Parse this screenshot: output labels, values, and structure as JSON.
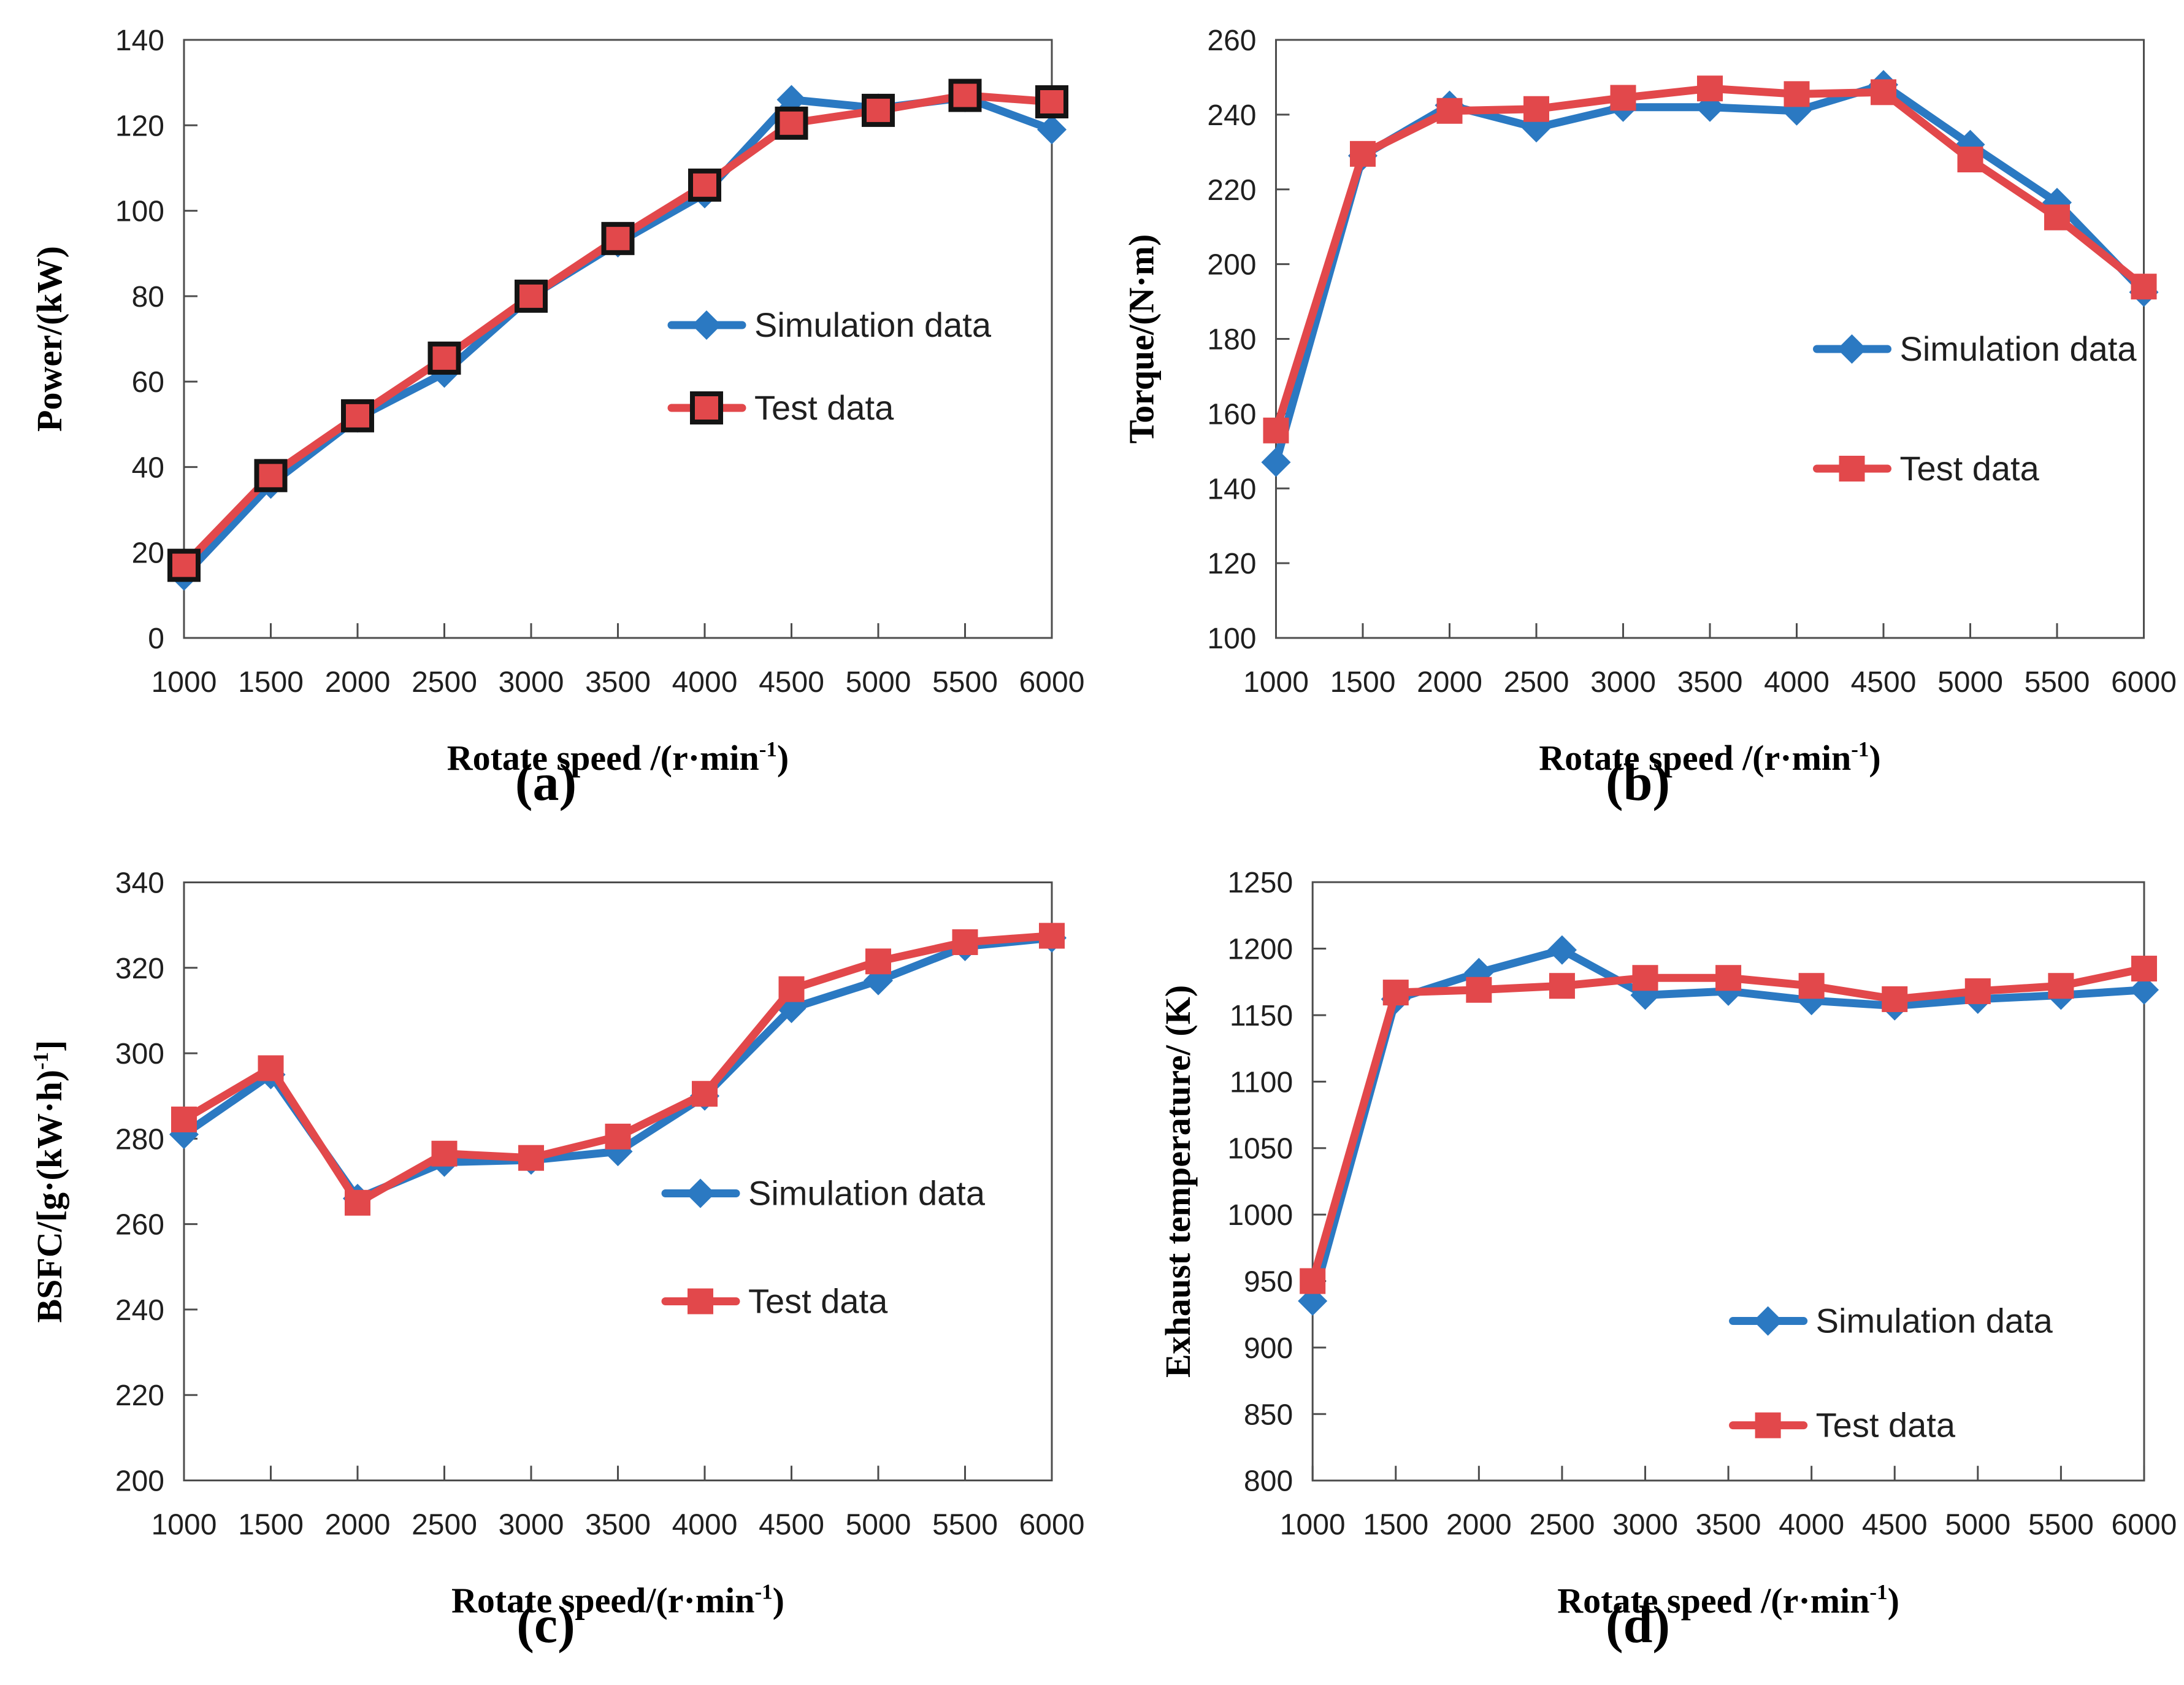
{
  "colors": {
    "simulation": "#2b79c2",
    "test": "#e2484b",
    "test_marker_outline": "#141414",
    "axis_frame": "#4d4d4d",
    "tick_text": "#1f1f1f",
    "axis_title_text": "#000000",
    "legend_text": "#1f1f1f"
  },
  "legend": {
    "simulation_label": "Simulation data",
    "test_label": "Test data"
  },
  "chart_data": [
    {
      "id": "a",
      "type": "line",
      "caption": "(a)",
      "ylabel": "Power/(kW)",
      "xlabel": "Rotate speed /(r·min^{-1})",
      "ylim": [
        0,
        140
      ],
      "ytick_step": 20,
      "grid": false,
      "legend_position": "inside-right-middle",
      "x": [
        1000,
        1500,
        2000,
        2500,
        3000,
        3500,
        4000,
        4500,
        5000,
        5500,
        6000
      ],
      "series": [
        {
          "name": "Simulation data",
          "marker": "diamond",
          "color_key": "simulation",
          "marker_outline": false,
          "values": [
            14.5,
            36,
            51.5,
            62,
            80,
            92.5,
            104,
            126,
            124,
            126.5,
            119
          ]
        },
        {
          "name": "Test data",
          "marker": "square",
          "color_key": "test",
          "marker_outline": true,
          "values": [
            17,
            38,
            52,
            65.5,
            80,
            93.5,
            106,
            120.5,
            123.5,
            127,
            125.5
          ]
        }
      ]
    },
    {
      "id": "b",
      "type": "line",
      "caption": "(b)",
      "ylabel": "Torque/(N·m)",
      "xlabel": "Rotate speed /(r·min^{-1})",
      "ylim": [
        100,
        260
      ],
      "ytick_step": 20,
      "grid": false,
      "legend_position": "inside-right-middle",
      "x": [
        1000,
        1500,
        2000,
        2500,
        3000,
        3500,
        4000,
        4500,
        5000,
        5500,
        6000
      ],
      "series": [
        {
          "name": "Simulation data",
          "marker": "diamond",
          "color_key": "simulation",
          "marker_outline": false,
          "values": [
            147,
            229,
            242.5,
            236.5,
            242,
            242,
            241,
            248,
            232,
            216.5,
            192.5
          ]
        },
        {
          "name": "Test data",
          "marker": "square",
          "color_key": "test",
          "marker_outline": false,
          "values": [
            155.5,
            229.5,
            241,
            241.5,
            244.5,
            247,
            245.5,
            246,
            228,
            212.5,
            194
          ]
        }
      ]
    },
    {
      "id": "c",
      "type": "line",
      "caption": "(c)",
      "ylabel": "BSFC/[g·(kW·h)^{-1}]",
      "xlabel": "Rotate speed/(r·min^{-1})",
      "ylim": [
        200,
        340
      ],
      "ytick_step": 20,
      "grid": false,
      "legend_position": "inside-right-middle",
      "x": [
        1000,
        1500,
        2000,
        2500,
        3000,
        3500,
        4000,
        4500,
        5000,
        5500,
        6000
      ],
      "series": [
        {
          "name": "Simulation data",
          "marker": "diamond",
          "color_key": "simulation",
          "marker_outline": false,
          "values": [
            281,
            295,
            266,
            274.5,
            275,
            277,
            290,
            310.5,
            317,
            325,
            327
          ]
        },
        {
          "name": "Test data",
          "marker": "square",
          "color_key": "test",
          "marker_outline": false,
          "values": [
            284.5,
            296.5,
            265,
            276.5,
            275.5,
            280.5,
            290.5,
            315,
            321.5,
            326,
            327.5
          ]
        }
      ]
    },
    {
      "id": "d",
      "type": "line",
      "caption": "(d)",
      "ylabel": "Exhaust temperature/ (K)",
      "xlabel": "Rotate speed /(r·min^{-1})",
      "ylim": [
        800,
        1250
      ],
      "ytick_step": 50,
      "grid": false,
      "legend_position": "inside-right-middle",
      "x": [
        1000,
        1500,
        2000,
        2500,
        3000,
        3500,
        4000,
        4500,
        5000,
        5500,
        6000
      ],
      "series": [
        {
          "name": "Simulation data",
          "marker": "diamond",
          "color_key": "simulation",
          "marker_outline": false,
          "values": [
            935,
            1162,
            1182,
            1199,
            1165,
            1168,
            1161,
            1157,
            1162,
            1165,
            1169
          ]
        },
        {
          "name": "Test data",
          "marker": "square",
          "color_key": "test",
          "marker_outline": false,
          "values": [
            950,
            1167,
            1169,
            1172,
            1178,
            1178,
            1172,
            1162,
            1168,
            1172,
            1185
          ]
        }
      ]
    }
  ]
}
